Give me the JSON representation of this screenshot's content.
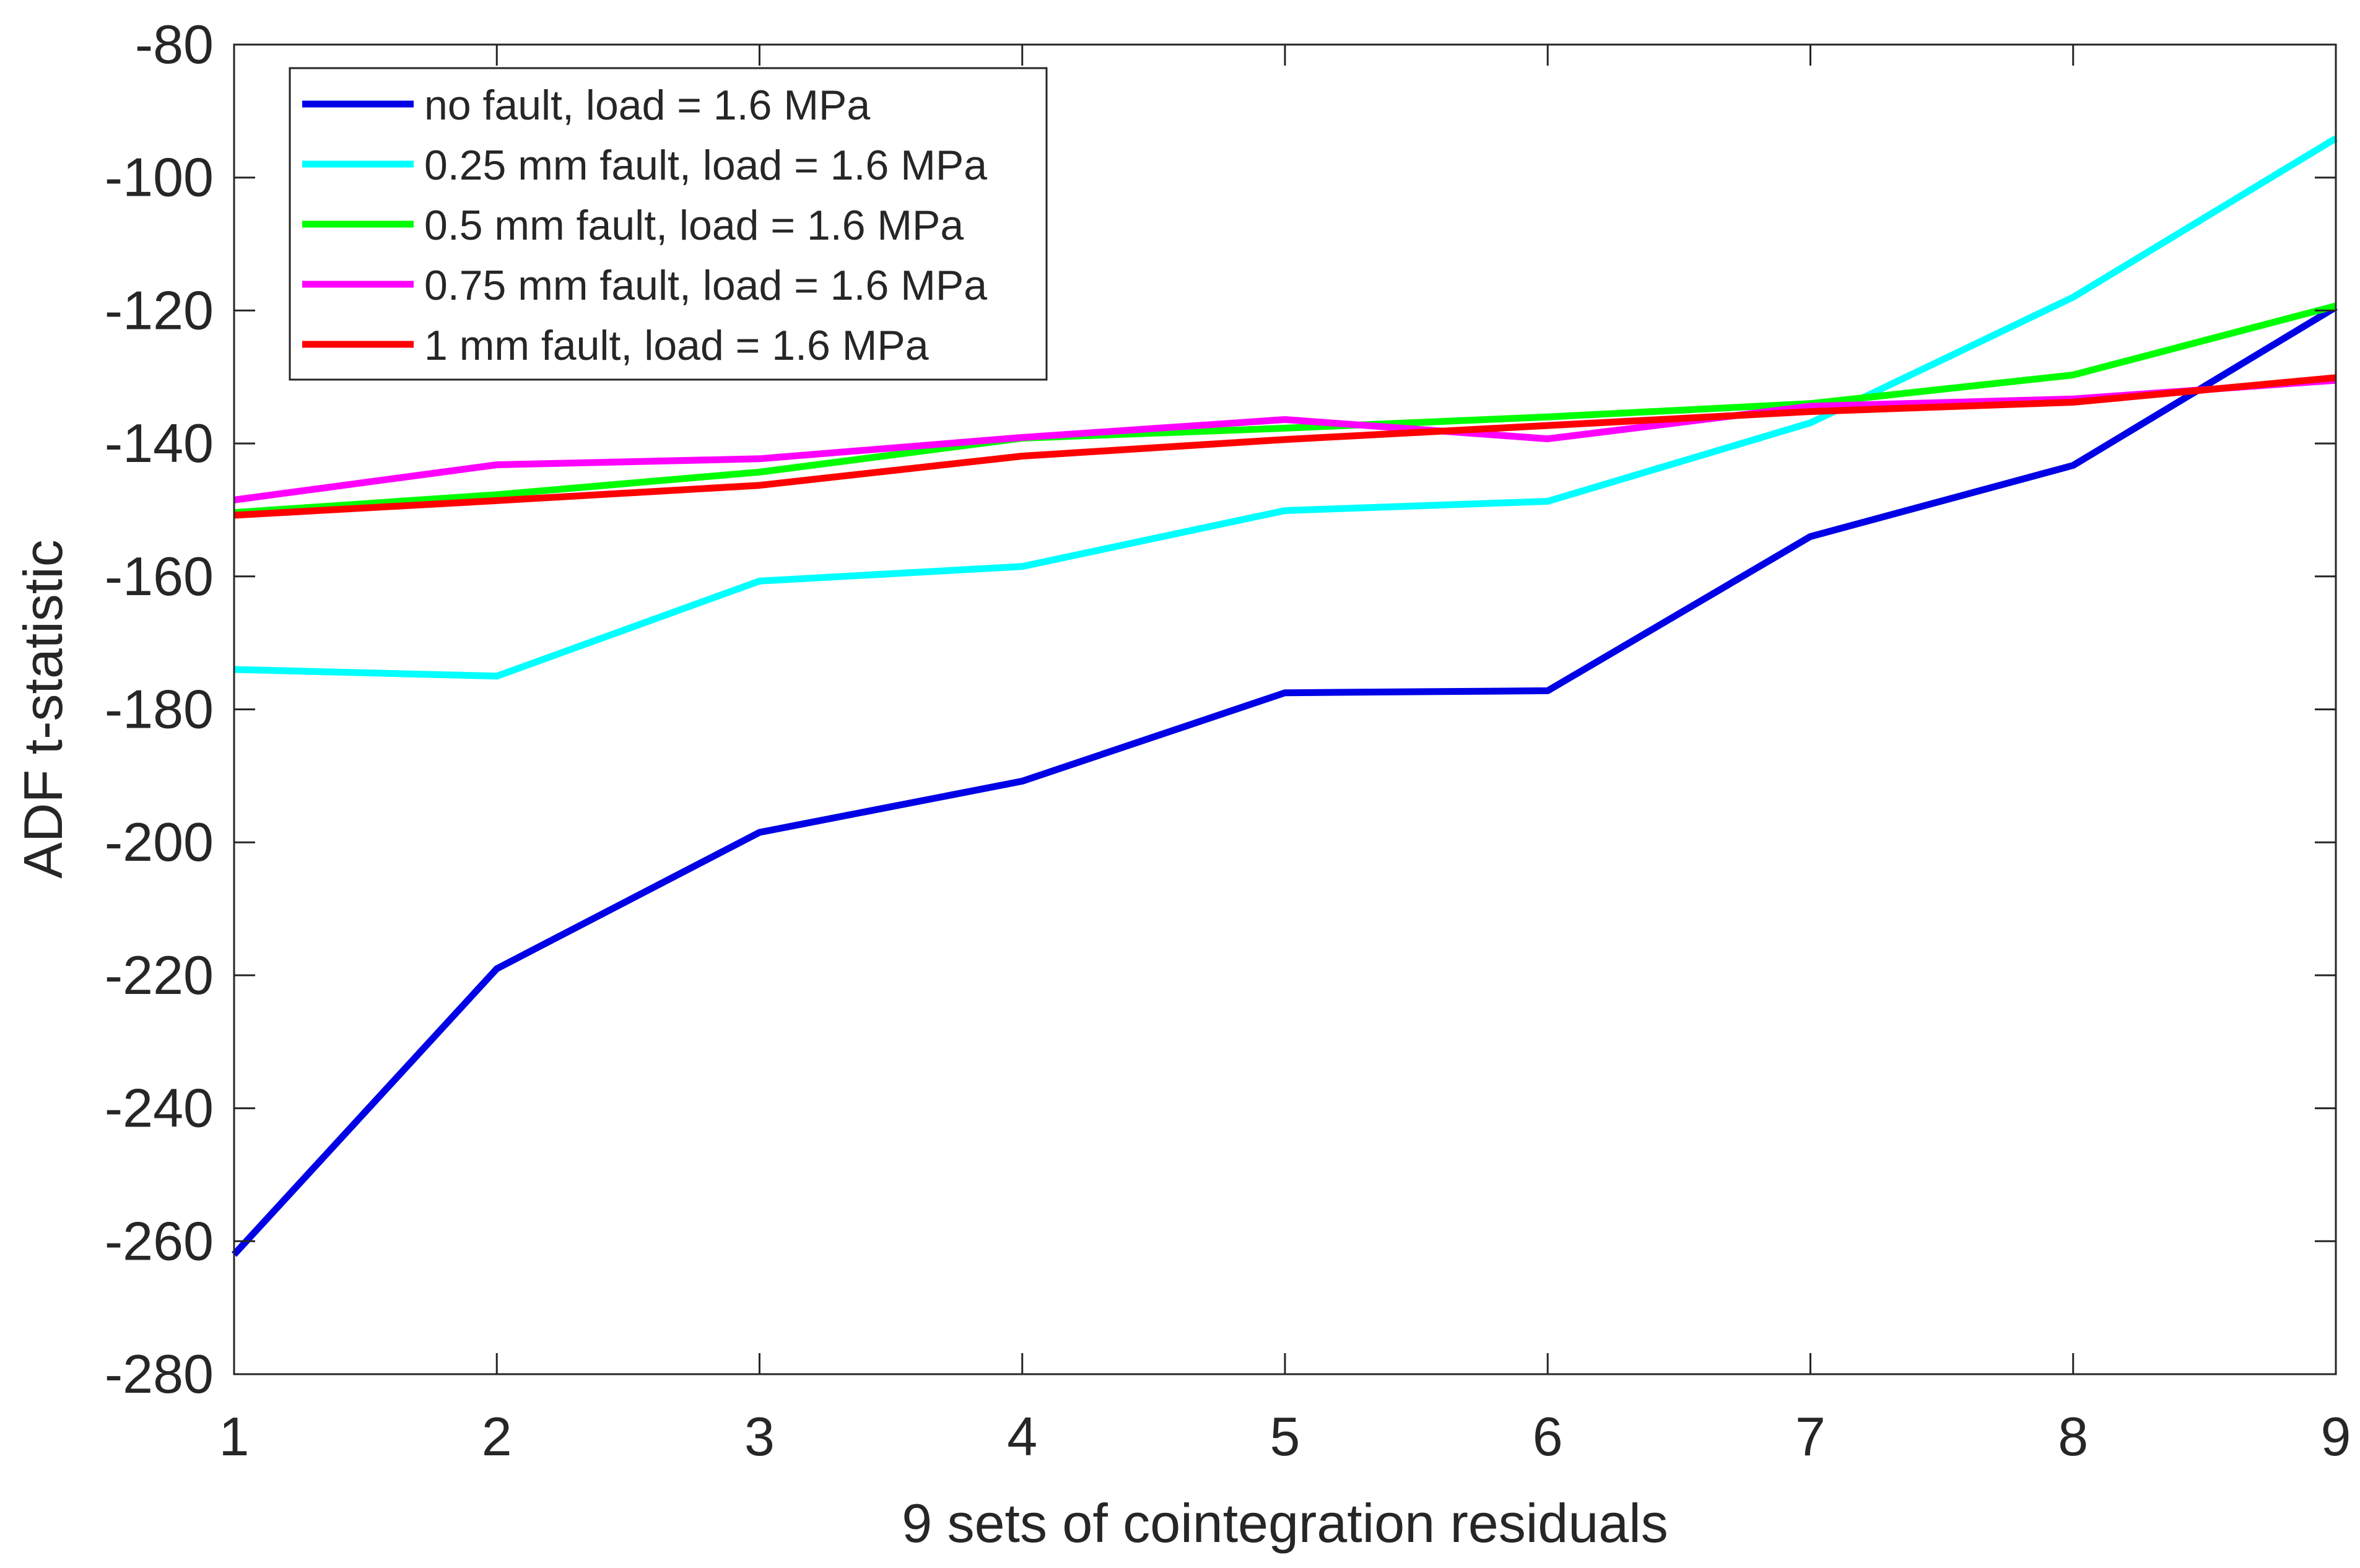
{
  "chart_data": {
    "type": "line",
    "title": "",
    "xlabel": "9 sets of cointegration residuals",
    "ylabel": "ADF t-statistic",
    "xlim": [
      1,
      9
    ],
    "ylim": [
      -280,
      -80
    ],
    "xticks": [
      1,
      2,
      3,
      4,
      5,
      6,
      7,
      8,
      9
    ],
    "yticks": [
      -280,
      -260,
      -240,
      -220,
      -200,
      -180,
      -160,
      -140,
      -120,
      -100,
      -80
    ],
    "grid": false,
    "legend_position": "top-left",
    "x": [
      1,
      2,
      3,
      4,
      5,
      6,
      7,
      8,
      9
    ],
    "series": [
      {
        "name": "no fault, load = 1.6 MPa",
        "color": "#0000e6",
        "values": [
          -262,
          -219,
          -198.5,
          -190.8,
          -177.5,
          -177.2,
          -154,
          -143.3,
          -119.5
        ]
      },
      {
        "name": "0.25 mm fault, load = 1.6 MPa",
        "color": "#00ffff",
        "values": [
          -174,
          -175,
          -160.7,
          -158.5,
          -150.1,
          -148.7,
          -136.9,
          -118,
          -94.1
        ]
      },
      {
        "name": "0.5 mm fault, load = 1.6 MPa",
        "color": "#00ff00",
        "values": [
          -150.4,
          -147.7,
          -144.3,
          -139.2,
          -137.7,
          -136,
          -134,
          -129.7,
          -119.3
        ]
      },
      {
        "name": "0.75 mm fault, load = 1.6 MPa",
        "color": "#ff00ff",
        "values": [
          -148.5,
          -143.2,
          -142.3,
          -139.1,
          -136.4,
          -139.3,
          -134.4,
          -133.3,
          -130.5
        ]
      },
      {
        "name": "1 mm fault, load = 1.6 MPa",
        "color": "#ff0000",
        "values": [
          -150.8,
          -148.6,
          -146.3,
          -141.9,
          -139.4,
          -137.3,
          -135.2,
          -133.8,
          -130.1
        ]
      }
    ]
  }
}
